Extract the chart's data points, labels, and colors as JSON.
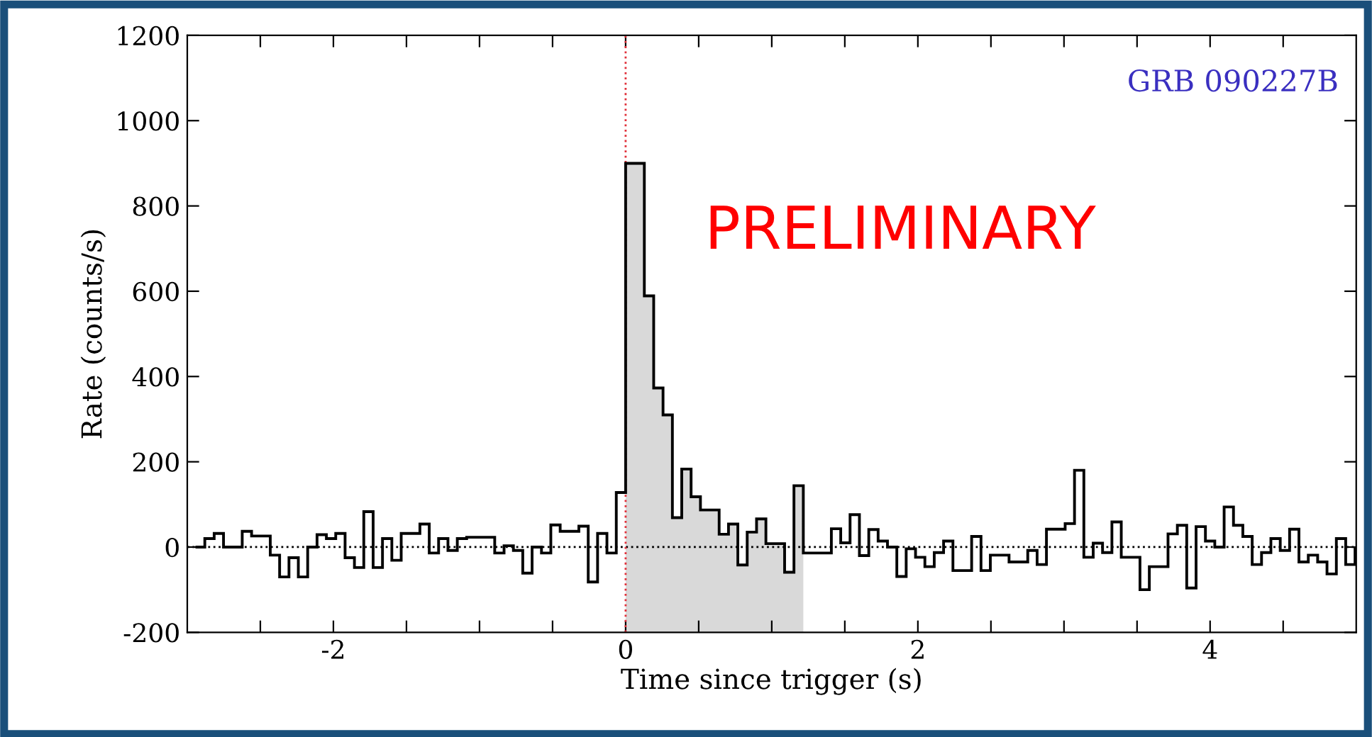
{
  "chart_data": {
    "type": "histogram",
    "xlabel": "Time since trigger (s)",
    "ylabel": "Rate (counts/s)",
    "bins": [
      -2.944,
      -2.88,
      -2.816,
      -2.752,
      -2.688,
      -2.624,
      -2.56,
      -2.496,
      -2.432,
      -2.368,
      -2.304,
      -2.24,
      -2.176,
      -2.112,
      -2.048,
      -1.984,
      -1.92,
      -1.856,
      -1.792,
      -1.728,
      -1.664,
      -1.6,
      -1.536,
      -1.472,
      -1.408,
      -1.344,
      -1.28,
      -1.216,
      -1.152,
      -1.088,
      -1.024,
      -0.96,
      -0.896,
      -0.832,
      -0.768,
      -0.704,
      -0.64,
      -0.576,
      -0.512,
      -0.448,
      -0.384,
      -0.32,
      -0.256,
      -0.192,
      -0.128,
      -0.064,
      0,
      0.064,
      0.128,
      0.192,
      0.256,
      0.32,
      0.384,
      0.448,
      0.512,
      0.576,
      0.64,
      0.704,
      0.768,
      0.832,
      0.896,
      0.96,
      1.024,
      1.088,
      1.152,
      1.216,
      1.28,
      1.344,
      1.408,
      1.472,
      1.536,
      1.6,
      1.664,
      1.728,
      1.792,
      1.856,
      1.92,
      1.984,
      2.048,
      2.112,
      2.176,
      2.24,
      2.304,
      2.368,
      2.432,
      2.496,
      2.56,
      2.624,
      2.688,
      2.752,
      2.816,
      2.88,
      2.944,
      3.008,
      3.072,
      3.136,
      3.2,
      3.264,
      3.328,
      3.392,
      3.456,
      3.52,
      3.584,
      3.648,
      3.712,
      3.776,
      3.84,
      3.904,
      3.968,
      4.032,
      4.096,
      4.16,
      4.224,
      4.288,
      4.352,
      4.416,
      4.48,
      4.544,
      4.608,
      4.672,
      4.736,
      4.8,
      4.864,
      4.928,
      4.992
    ],
    "values": [
      0,
      20,
      32,
      0,
      0,
      37,
      26,
      26,
      -19,
      -70,
      -25,
      -70,
      0,
      29,
      20,
      32,
      -25,
      -48,
      83,
      -48,
      20,
      -31,
      32,
      32,
      54,
      -14,
      20,
      -8,
      20,
      23,
      23,
      23,
      -14,
      3,
      -8,
      -61,
      0,
      -14,
      52,
      37,
      37,
      49,
      -82,
      32,
      -14,
      128,
      900,
      900,
      589,
      373,
      310,
      69,
      183,
      118,
      87,
      87,
      30,
      54,
      -42,
      35,
      66,
      8,
      8,
      -59,
      144,
      -14,
      -14,
      -14,
      43,
      10,
      76,
      -20,
      41,
      14,
      0,
      -69,
      -4,
      -24,
      -46,
      -13,
      14,
      -55,
      -55,
      25,
      -55,
      -19,
      -19,
      -35,
      -35,
      -8,
      -41,
      42,
      42,
      55,
      180,
      -24,
      9,
      -13,
      59,
      -24,
      -24,
      -100,
      -46,
      -46,
      31,
      51,
      -96,
      48,
      14,
      0,
      94,
      51,
      25,
      -41,
      -13,
      20,
      -8,
      42,
      -35,
      -19,
      -35,
      -63,
      20,
      -41
    ],
    "color": "#000000",
    "xlim": [
      -3,
      5
    ],
    "xticks": [
      {
        "value": -2.5,
        "label": null
      },
      -2,
      {
        "value": -1.5,
        "label": null
      },
      {
        "value": -1,
        "label": null
      },
      {
        "value": -0.5,
        "label": null
      },
      0,
      {
        "value": 0.5,
        "label": null
      },
      {
        "value": 1,
        "label": null
      },
      {
        "value": 1.5,
        "label": null
      },
      2,
      {
        "value": 2.5,
        "label": null
      },
      {
        "value": 3,
        "label": null
      },
      {
        "value": 3.5,
        "label": null
      },
      4,
      {
        "value": 4.5,
        "label": null
      }
    ],
    "ylim": [
      -200,
      1200
    ],
    "yticks": [
      -200,
      0,
      200,
      400,
      600,
      800,
      1000,
      1200
    ],
    "ref_lines": [
      {
        "axis": "y",
        "value": 0,
        "color": "#000000",
        "line_style": "dotted"
      },
      {
        "axis": "x",
        "value": 0,
        "color": "#e0303a",
        "line_style": "dotted"
      }
    ],
    "bands": [
      {
        "axis": "x",
        "from": 0,
        "to": 1.216,
        "color": "#d9d9d9"
      }
    ],
    "title": "GRB 090227B",
    "annotations": [
      "PRELIMINARY"
    ],
    "grid": false,
    "legend": false
  }
}
